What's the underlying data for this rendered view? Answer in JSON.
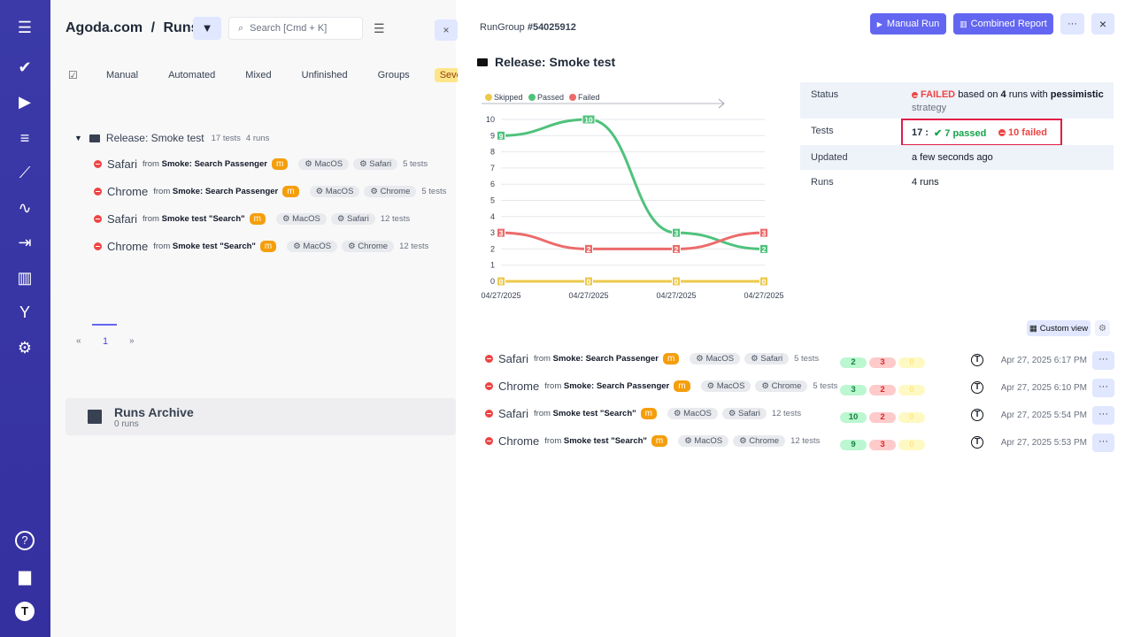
{
  "sidebar": {
    "icons": [
      "menu-icon",
      "check-icon",
      "play-icon",
      "list-check-icon",
      "steps-icon",
      "pulse-icon",
      "import-icon",
      "analytics-icon",
      "branch-icon",
      "settings-icon",
      "help-icon",
      "folder-icon",
      "user-avatar-icon"
    ]
  },
  "left": {
    "project": "Agoda.com",
    "separator": "/",
    "page": "Runs",
    "search_placeholder": "Search [Cmd + K]",
    "tabs": [
      "Manual",
      "Automated",
      "Mixed",
      "Unfinished",
      "Groups",
      "Severity"
    ],
    "group": {
      "title": "Release: Smoke test",
      "tests": "17 tests",
      "runs": "4 runs"
    },
    "runs": [
      {
        "name": "Safari",
        "from": "from",
        "source": "Smoke: Search Passenger",
        "label": "m",
        "os": "MacOS",
        "browser": "Safari",
        "tests": "5 tests"
      },
      {
        "name": "Chrome",
        "from": "from",
        "source": "Smoke: Search Passenger",
        "label": "m",
        "os": "MacOS",
        "browser": "Chrome",
        "tests": "5 tests"
      },
      {
        "name": "Safari",
        "from": "from",
        "source": "Smoke test \"Search\"",
        "label": "m",
        "os": "MacOS",
        "browser": "Safari",
        "tests": "12 tests"
      },
      {
        "name": "Chrome",
        "from": "from",
        "source": "Smoke test \"Search\"",
        "label": "m",
        "os": "MacOS",
        "browser": "Chrome",
        "tests": "12 tests"
      }
    ],
    "pagination": {
      "prev": "«",
      "page": "1",
      "next": "»"
    },
    "archive": {
      "title": "Runs Archive",
      "count": "0 runs"
    }
  },
  "right": {
    "rungroup_label": "RunGroup",
    "rungroup_id": "#54025912",
    "manual_run": "Manual Run",
    "combined_report": "Combined Report",
    "more": "···",
    "close": "×",
    "title": "Release: Smoke test",
    "info": {
      "status_label": "Status",
      "status_value": "FAILED",
      "status_based": "based on",
      "status_runs": "4",
      "status_runs_text": "runs with",
      "status_strategy": "pessimistic",
      "status_strategy_text": "strategy",
      "tests_label": "Tests",
      "tests_total": "17 :",
      "tests_passed": "7 passed",
      "tests_failed": "10 failed",
      "updated_label": "Updated",
      "updated_value": "a few seconds ago",
      "runs_label": "Runs",
      "runs_value": "4 runs"
    },
    "custom_view": "Custom view",
    "runs": [
      {
        "name": "Safari",
        "from": "from",
        "source": "Smoke: Search Passenger",
        "label": "m",
        "os": "MacOS",
        "browser": "Safari",
        "tests": "5 tests",
        "passed": "2",
        "failed": "3",
        "skipped": "0",
        "date": "Apr 27, 2025 6:17 PM"
      },
      {
        "name": "Chrome",
        "from": "from",
        "source": "Smoke: Search Passenger",
        "label": "m",
        "os": "MacOS",
        "browser": "Chrome",
        "tests": "5 tests",
        "passed": "3",
        "failed": "2",
        "skipped": "0",
        "date": "Apr 27, 2025 6:10 PM"
      },
      {
        "name": "Safari",
        "from": "from",
        "source": "Smoke test \"Search\"",
        "label": "m",
        "os": "MacOS",
        "browser": "Safari",
        "tests": "12 tests",
        "passed": "10",
        "failed": "2",
        "skipped": "0",
        "date": "Apr 27, 2025 5:54 PM"
      },
      {
        "name": "Chrome",
        "from": "from",
        "source": "Smoke test \"Search\"",
        "label": "m",
        "os": "MacOS",
        "browser": "Chrome",
        "tests": "12 tests",
        "passed": "9",
        "failed": "3",
        "skipped": "0",
        "date": "Apr 27, 2025 5:53 PM"
      }
    ]
  },
  "colors": {
    "sidebar": "#3730a3",
    "accent": "#6366f1",
    "passed": "#4fc27c",
    "failed": "#ec6b6b",
    "skipped": "#ecc94b"
  },
  "chart_data": {
    "type": "line",
    "categories": [
      "04/27/2025",
      "04/27/2025",
      "04/27/2025",
      "04/27/2025"
    ],
    "ylim": [
      0,
      10
    ],
    "yticks": [
      "0",
      "1",
      "2",
      "3",
      "4",
      "5",
      "6",
      "7",
      "8",
      "9",
      "10"
    ],
    "grid": true,
    "legend": "top-left",
    "series": [
      {
        "name": "Skipped",
        "color": "#ecc94b",
        "values": [
          0,
          0,
          0,
          0
        ]
      },
      {
        "name": "Passed",
        "color": "#4fc27c",
        "values": [
          9,
          10,
          3,
          2
        ]
      },
      {
        "name": "Failed",
        "color": "#ec6b6b",
        "values": [
          3,
          2,
          2,
          3
        ]
      }
    ]
  }
}
